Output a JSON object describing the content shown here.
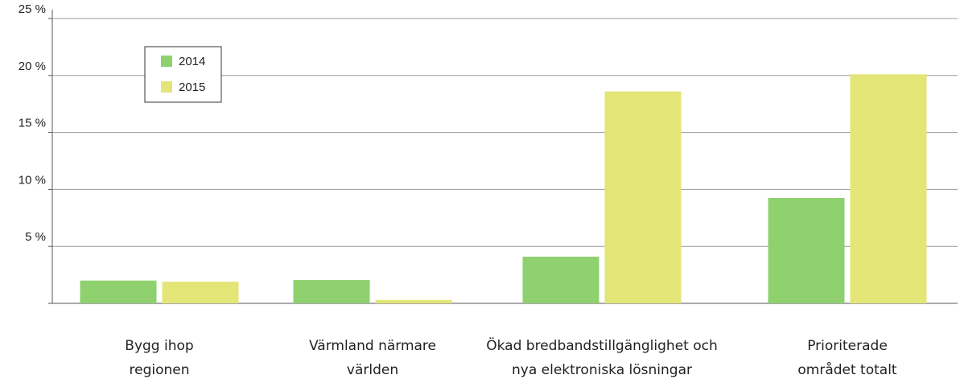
{
  "chart_data": {
    "type": "bar",
    "categories": [
      "Bygg ihop regionen",
      "Värmland närmare världen",
      "Ökad bredbandstillgänglighet och nya elektroniska lösningar",
      "Prioriterade området totalt"
    ],
    "series": [
      {
        "name": "2014",
        "color": "#8fd16f",
        "values": [
          2.0,
          2.05,
          4.1,
          9.25
        ]
      },
      {
        "name": "2015",
        "color": "#e3e676",
        "values": [
          1.9,
          0.3,
          18.6,
          20.1
        ]
      }
    ],
    "ylim": [
      0,
      25
    ],
    "yticks": [
      {
        "value": 5,
        "label": "5 %"
      },
      {
        "value": 10,
        "label": "10 %"
      },
      {
        "value": 15,
        "label": "15 %"
      },
      {
        "value": 20,
        "label": "20 %"
      },
      {
        "value": 25,
        "label": "25 %"
      }
    ],
    "grid": true,
    "legend": "upper left"
  }
}
